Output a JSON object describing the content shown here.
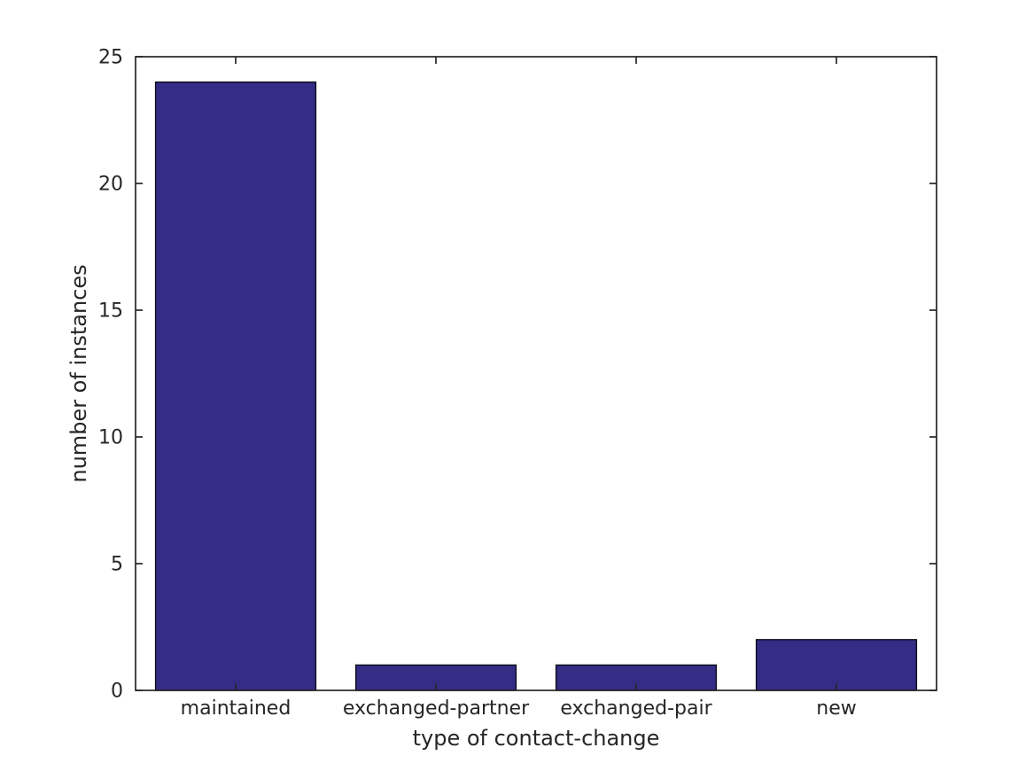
{
  "figure": {
    "background_color": "#ffffff",
    "axis_color": "#262626",
    "tick_label_color": "#262626"
  },
  "chart_data": {
    "type": "bar",
    "title": "",
    "categories": [
      "maintained",
      "exchanged-partner",
      "exchanged-pair",
      "new"
    ],
    "values": [
      24,
      1,
      1,
      2
    ],
    "xlabel": "type of contact-change",
    "ylabel": "number of instances",
    "ylim": [
      0,
      25
    ],
    "yticks": [
      0,
      5,
      10,
      15,
      20,
      25
    ],
    "bar_color": "#352c86",
    "bar_edge_color": "#0d0d1a",
    "bar_width_fraction": 0.8,
    "grid": false,
    "legend": null,
    "box": true,
    "tick_direction": "in"
  }
}
